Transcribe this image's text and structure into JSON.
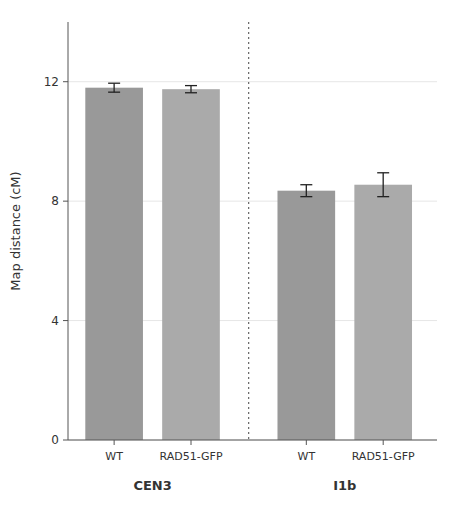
{
  "chart_data": {
    "type": "bar",
    "categories": [
      "WT",
      "RAD51-GFP",
      "WT",
      "RAD51-GFP"
    ],
    "groups": [
      "CEN3",
      "CEN3",
      "I1b",
      "I1b"
    ],
    "values": [
      11.8,
      11.75,
      8.35,
      8.55
    ],
    "errors": [
      0.15,
      0.12,
      0.2,
      0.4
    ],
    "colors": [
      "#999999",
      "#aaaaaa",
      "#999999",
      "#aaaaaa"
    ],
    "ylabel": "Map distance (cM)",
    "ylim": [
      0,
      14
    ],
    "yticks": [
      0,
      4,
      8,
      12
    ]
  }
}
